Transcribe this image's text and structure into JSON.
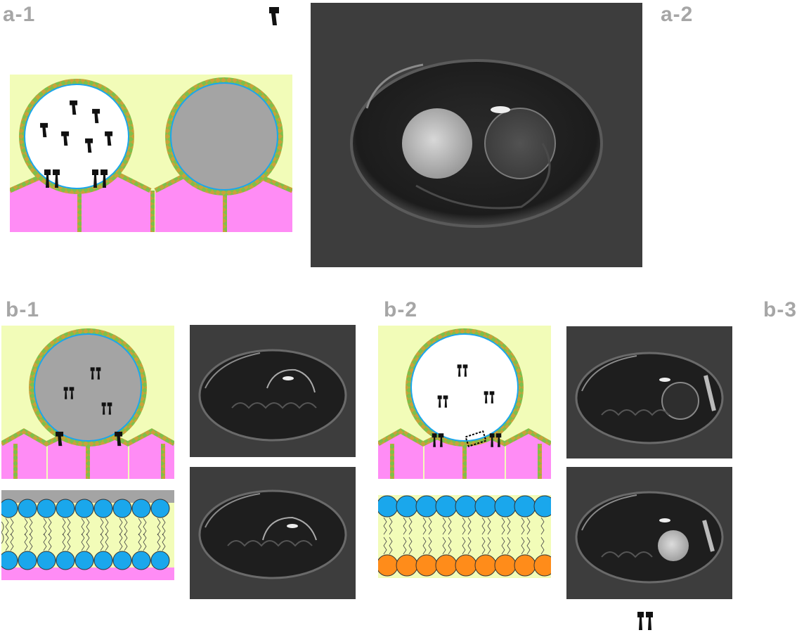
{
  "labels": {
    "a1": "a-1",
    "a2": "a-2",
    "b1": "b-1",
    "b2": "b-2",
    "b3": "b-3"
  },
  "colors": {
    "medium": "#f2fcb8",
    "cell": "#ff8cf5",
    "membrane_head": "#1aa7ec",
    "membrane_tail": "#c8a23a",
    "grey_droplet": "#a4a4a4",
    "orange_leaflet": "#ff8c1a",
    "photo_bg": "#3d3d3d"
  },
  "icons": [
    "channel-protein-icon",
    "channel-pair-icon"
  ]
}
